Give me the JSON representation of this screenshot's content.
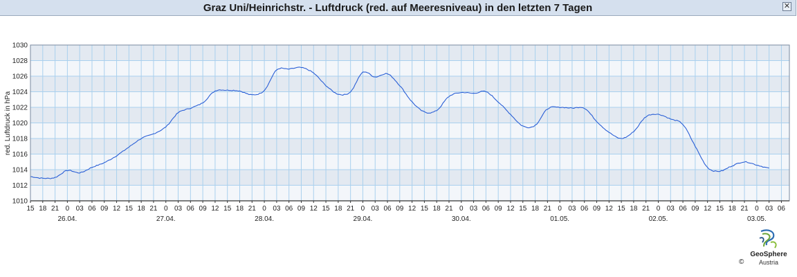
{
  "title": "Graz Uni/Heinrichstr. - Luftdruck (red. auf Meeresniveau) in den letzten 7 Tagen",
  "window": {
    "close_glyph": "✕"
  },
  "logo": {
    "name": "GeoSphere",
    "country": "Austria",
    "copyright": "©"
  },
  "chart_data": {
    "type": "line",
    "title": "Graz Uni/Heinrichstr. - Luftdruck (red. auf Meeresniveau) in den letzten 7 Tagen",
    "xlabel": "",
    "ylabel": "red. Luftdruck in hPa",
    "ylim": [
      1010,
      1030
    ],
    "yticks": [
      1010,
      1012,
      1014,
      1016,
      1018,
      1020,
      1022,
      1024,
      1026,
      1028,
      1030
    ],
    "x_unit": "hour (local), 3-hourly ticks",
    "xlim": [
      "25.04. 15:00",
      "03.05. 06:00"
    ],
    "xtick_labels": [
      "15",
      "18",
      "21",
      "0",
      "03",
      "06",
      "09",
      "12",
      "15",
      "18",
      "21",
      "0",
      "03",
      "06",
      "09",
      "12",
      "15",
      "18",
      "21",
      "0",
      "03",
      "06",
      "09",
      "12",
      "15",
      "18",
      "21",
      "0",
      "03",
      "06",
      "09",
      "12",
      "15",
      "18",
      "21",
      "0",
      "03",
      "06",
      "09",
      "12",
      "15",
      "18",
      "21",
      "0",
      "03",
      "06",
      "09",
      "12",
      "15",
      "18",
      "21",
      "0",
      "03",
      "06",
      "09",
      "12",
      "15",
      "18",
      "21",
      "0",
      "03",
      "06"
    ],
    "date_labels": [
      "26.04.",
      "27.04.",
      "28.04.",
      "29.04.",
      "30.04.",
      "01.05.",
      "02.05.",
      "03.05."
    ],
    "grid": true,
    "series": [
      {
        "name": "",
        "color": "#2a5fd6",
        "x": [
          "25.04. 15:00",
          "25.04. 18:00",
          "25.04. 21:00",
          "26.04. 00:00",
          "26.04. 03:00",
          "26.04. 06:00",
          "26.04. 09:00",
          "26.04. 12:00",
          "26.04. 15:00",
          "26.04. 18:00",
          "26.04. 21:00",
          "27.04. 00:00",
          "27.04. 03:00",
          "27.04. 06:00",
          "27.04. 09:00",
          "27.04. 12:00",
          "27.04. 15:00",
          "27.04. 18:00",
          "27.04. 21:00",
          "28.04. 00:00",
          "28.04. 03:00",
          "28.04. 06:00",
          "28.04. 09:00",
          "28.04. 12:00",
          "28.04. 15:00",
          "28.04. 18:00",
          "28.04. 21:00",
          "29.04. 00:00",
          "29.04. 03:00",
          "29.04. 06:00",
          "29.04. 09:00",
          "29.04. 12:00",
          "29.04. 15:00",
          "29.04. 18:00",
          "29.04. 21:00",
          "30.04. 00:00",
          "30.04. 03:00",
          "30.04. 06:00",
          "30.04. 09:00",
          "30.04. 12:00",
          "30.04. 15:00",
          "30.04. 18:00",
          "30.04. 21:00",
          "01.05. 00:00",
          "01.05. 03:00",
          "01.05. 06:00",
          "01.05. 09:00",
          "01.05. 12:00",
          "01.05. 15:00",
          "01.05. 18:00",
          "01.05. 21:00",
          "02.05. 00:00",
          "02.05. 03:00",
          "02.05. 06:00",
          "02.05. 09:00",
          "02.05. 12:00",
          "02.05. 15:00",
          "02.05. 18:00",
          "02.05. 21:00",
          "03.05. 00:00",
          "03.05. 03:00"
        ],
        "values": [
          1013.1,
          1012.9,
          1013.0,
          1013.9,
          1013.6,
          1014.3,
          1014.9,
          1015.8,
          1016.9,
          1018.0,
          1018.6,
          1019.5,
          1021.3,
          1021.9,
          1022.6,
          1024.1,
          1024.2,
          1024.1,
          1023.6,
          1024.2,
          1026.8,
          1026.9,
          1027.1,
          1026.4,
          1024.8,
          1023.7,
          1024.0,
          1026.5,
          1025.9,
          1026.3,
          1024.8,
          1022.7,
          1021.4,
          1021.6,
          1023.4,
          1023.9,
          1023.8,
          1024.0,
          1022.7,
          1021.1,
          1019.6,
          1019.7,
          1021.8,
          1022.0,
          1021.9,
          1021.9,
          1020.2,
          1018.8,
          1018.0,
          1018.9,
          1020.8,
          1021.1,
          1020.5,
          1019.8,
          1017.0,
          1014.3,
          1013.8,
          1014.5,
          1015.0,
          1014.6,
          1014.2
        ]
      }
    ]
  }
}
